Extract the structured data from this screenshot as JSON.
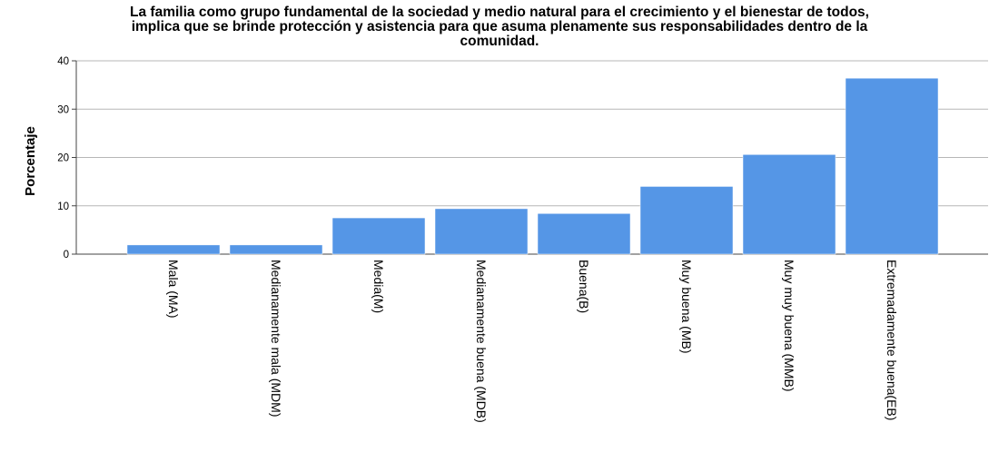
{
  "chart_data": {
    "type": "bar",
    "title_lines": [
      "La familia como grupo fundamental de la sociedad y medio natural para el crecimiento y el bienestar de todos,",
      "implica que se brinde protección y asistencia para que asuma plenamente sus responsabilidades dentro de la",
      "comunidad."
    ],
    "xlabel": "",
    "ylabel": "Porcentaje",
    "ylim": [
      0,
      40
    ],
    "yticks": [
      0,
      10,
      20,
      30,
      40
    ],
    "grid": true,
    "bar_color": "#5596e6",
    "categories": [
      "Mala (MA)",
      "Medianamente mala (MDM)",
      "Media(M)",
      "Medianamente buena (MDB)",
      "Buena(B)",
      "Muy buena (MB)",
      "Muy muy buena (MMB)",
      "Extremadamente buena(EB)"
    ],
    "values": [
      1.9,
      1.9,
      7.5,
      9.4,
      8.4,
      14.0,
      20.6,
      36.4
    ]
  }
}
